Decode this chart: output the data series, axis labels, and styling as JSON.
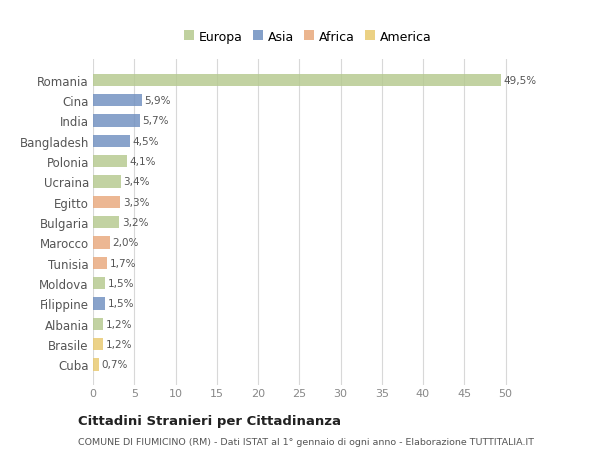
{
  "countries": [
    "Romania",
    "Cina",
    "India",
    "Bangladesh",
    "Polonia",
    "Ucraina",
    "Egitto",
    "Bulgaria",
    "Marocco",
    "Tunisia",
    "Moldova",
    "Filippine",
    "Albania",
    "Brasile",
    "Cuba"
  ],
  "values": [
    49.5,
    5.9,
    5.7,
    4.5,
    4.1,
    3.4,
    3.3,
    3.2,
    2.0,
    1.7,
    1.5,
    1.5,
    1.2,
    1.2,
    0.7
  ],
  "labels": [
    "49,5%",
    "5,9%",
    "5,7%",
    "4,5%",
    "4,1%",
    "3,4%",
    "3,3%",
    "3,2%",
    "2,0%",
    "1,7%",
    "1,5%",
    "1,5%",
    "1,2%",
    "1,2%",
    "0,7%"
  ],
  "colors": [
    "#b5c98e",
    "#6f8fc0",
    "#6f8fc0",
    "#6f8fc0",
    "#b5c98e",
    "#b5c98e",
    "#e8a87c",
    "#b5c98e",
    "#e8a87c",
    "#e8a87c",
    "#b5c98e",
    "#6f8fc0",
    "#b5c98e",
    "#e8c96e",
    "#e8c96e"
  ],
  "continent_colors": {
    "Europa": "#b5c98e",
    "Asia": "#6f8fc0",
    "Africa": "#e8a87c",
    "America": "#e8c96e"
  },
  "xlim": [
    0,
    52
  ],
  "xticks": [
    0,
    5,
    10,
    15,
    20,
    25,
    30,
    35,
    40,
    45,
    50
  ],
  "title": "Cittadini Stranieri per Cittadinanza",
  "subtitle": "COMUNE DI FIUMICINO (RM) - Dati ISTAT al 1° gennaio di ogni anno - Elaborazione TUTTITALIA.IT",
  "background_color": "#ffffff",
  "grid_color": "#d8d8d8",
  "bar_height": 0.6
}
